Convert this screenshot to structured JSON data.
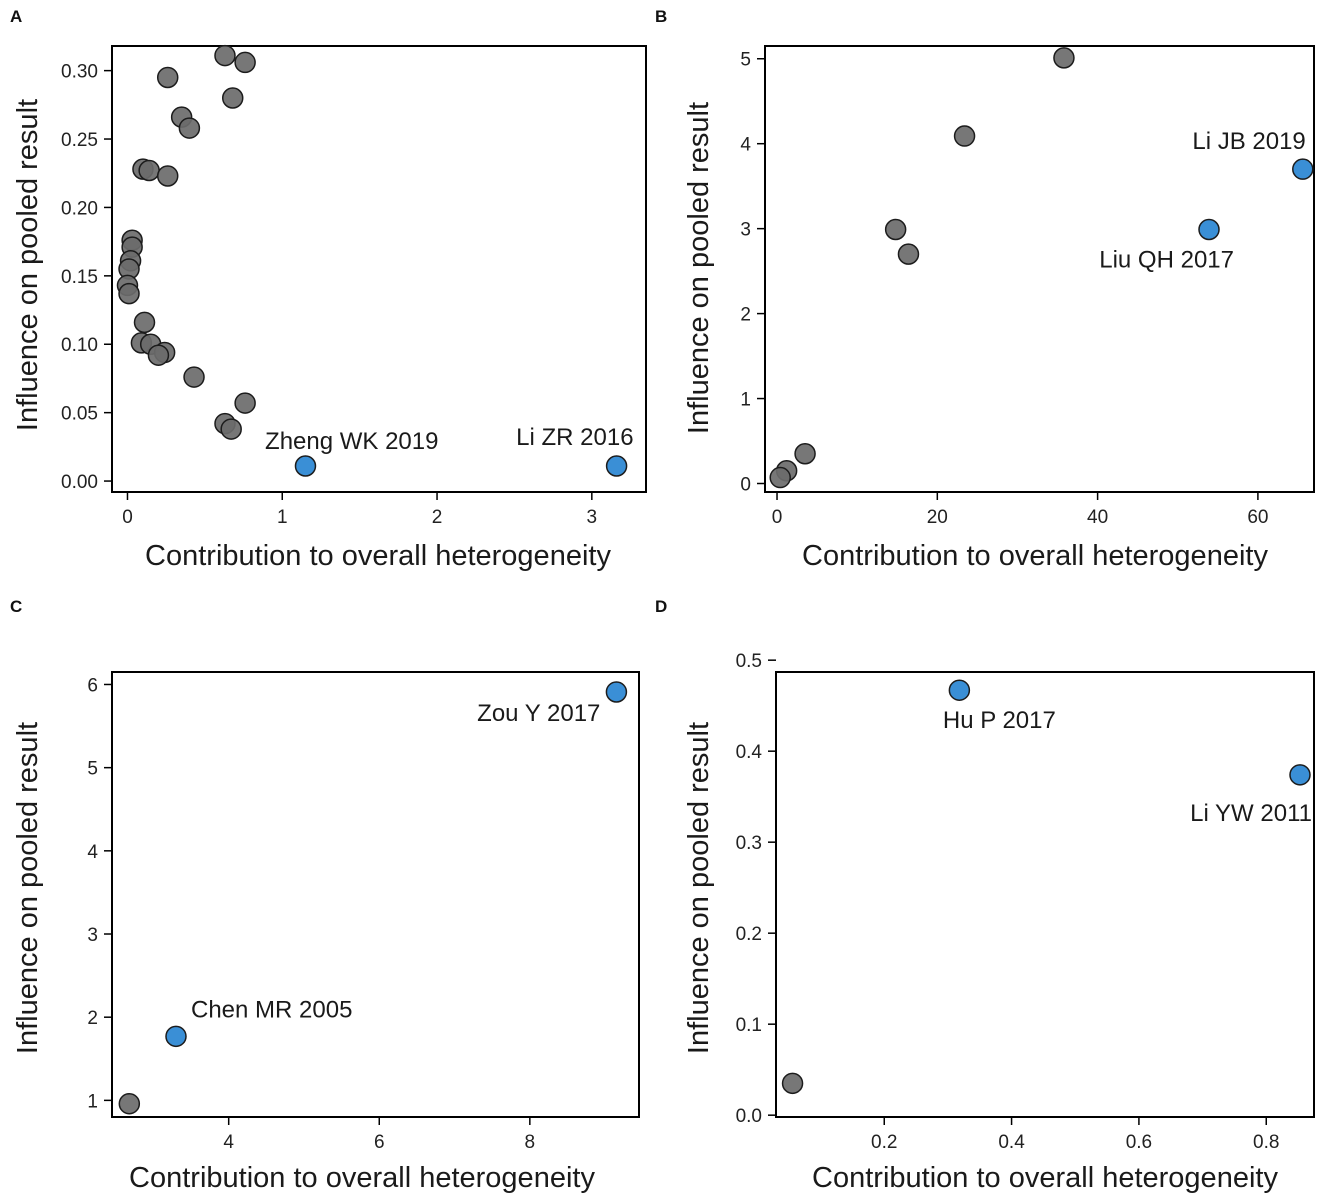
{
  "colors": {
    "normal": "#6b6b6b",
    "highlight": "#3a8fd6"
  },
  "chart_data": [
    {
      "panel": "A",
      "type": "scatter",
      "xlabel": "Contribution to overall heterogeneity",
      "ylabel": "Influence on pooled result",
      "xlim": [
        -0.1,
        3.35
      ],
      "ylim": [
        -0.008,
        0.318
      ],
      "xticks": [
        0,
        1,
        2,
        3
      ],
      "yticks": [
        0.0,
        0.05,
        0.1,
        0.15,
        0.2,
        0.25,
        0.3
      ],
      "ytick_labels": [
        "0.00",
        "0.05",
        "0.10",
        "0.15",
        "0.20",
        "0.25",
        "0.30"
      ],
      "points": [
        {
          "x": 0.63,
          "y": 0.311
        },
        {
          "x": 0.76,
          "y": 0.306
        },
        {
          "x": 0.26,
          "y": 0.295
        },
        {
          "x": 0.68,
          "y": 0.28
        },
        {
          "x": 0.35,
          "y": 0.266
        },
        {
          "x": 0.4,
          "y": 0.258
        },
        {
          "x": 0.1,
          "y": 0.228
        },
        {
          "x": 0.14,
          "y": 0.227
        },
        {
          "x": 0.26,
          "y": 0.223
        },
        {
          "x": 0.03,
          "y": 0.176
        },
        {
          "x": 0.03,
          "y": 0.171
        },
        {
          "x": 0.02,
          "y": 0.161
        },
        {
          "x": 0.01,
          "y": 0.155
        },
        {
          "x": 0.0,
          "y": 0.143
        },
        {
          "x": 0.01,
          "y": 0.137
        },
        {
          "x": 0.11,
          "y": 0.116
        },
        {
          "x": 0.09,
          "y": 0.101
        },
        {
          "x": 0.15,
          "y": 0.1
        },
        {
          "x": 0.24,
          "y": 0.094
        },
        {
          "x": 0.2,
          "y": 0.092
        },
        {
          "x": 0.43,
          "y": 0.076
        },
        {
          "x": 0.76,
          "y": 0.057
        },
        {
          "x": 0.63,
          "y": 0.042
        },
        {
          "x": 0.67,
          "y": 0.038
        }
      ],
      "highlighted": [
        {
          "x": 1.15,
          "y": 0.011,
          "label": "Zheng WK 2019",
          "anchor": "end",
          "dx": 133,
          "dy": -17
        },
        {
          "x": 3.16,
          "y": 0.011,
          "label": "Li ZR 2016",
          "anchor": "end",
          "dx": 17,
          "dy": -21
        }
      ]
    },
    {
      "panel": "B",
      "type": "scatter",
      "xlabel": "Contribution to overall heterogeneity",
      "ylabel": "Influence on pooled result",
      "xlim": [
        -1.5,
        67
      ],
      "ylim": [
        -0.1,
        5.15
      ],
      "xticks": [
        0,
        20,
        40,
        60
      ],
      "yticks": [
        0,
        1,
        2,
        3,
        4,
        5
      ],
      "ytick_labels": [
        "0",
        "1",
        "2",
        "3",
        "4",
        "5"
      ],
      "points": [
        {
          "x": 35.8,
          "y": 5.01
        },
        {
          "x": 23.4,
          "y": 4.09
        },
        {
          "x": 14.8,
          "y": 2.99
        },
        {
          "x": 16.4,
          "y": 2.7
        },
        {
          "x": 3.5,
          "y": 0.35
        },
        {
          "x": 1.2,
          "y": 0.15
        },
        {
          "x": 0.4,
          "y": 0.07
        }
      ],
      "highlighted": [
        {
          "x": 65.6,
          "y": 3.7,
          "label": "Li JB 2019",
          "anchor": "end",
          "dx": 3,
          "dy": -20
        },
        {
          "x": 53.9,
          "y": 2.99,
          "label": "Liu QH 2017",
          "anchor": "end",
          "dx": 25,
          "dy": 38
        }
      ]
    },
    {
      "panel": "C",
      "type": "scatter",
      "xlabel": "Contribution to overall heterogeneity",
      "ylabel": "Influence on pooled result",
      "xlim": [
        2.45,
        9.45
      ],
      "ylim": [
        0.8,
        6.15
      ],
      "xticks": [
        4,
        6,
        8
      ],
      "yticks": [
        1,
        2,
        3,
        4,
        5,
        6
      ],
      "ytick_labels": [
        "1",
        "2",
        "3",
        "4",
        "5",
        "6"
      ],
      "points": [
        {
          "x": 2.68,
          "y": 0.96
        }
      ],
      "highlighted": [
        {
          "x": 9.15,
          "y": 5.91,
          "label": "Zou Y 2017",
          "anchor": "end",
          "dx": -16,
          "dy": 29
        },
        {
          "x": 3.3,
          "y": 1.77,
          "label": "Chen MR 2005",
          "anchor": "start",
          "dx": 15,
          "dy": -19
        }
      ]
    },
    {
      "panel": "D",
      "type": "scatter",
      "xlabel": "Contribution to overall heterogeneity",
      "ylabel": "Influence on pooled result",
      "xlim": [
        0.03,
        0.875
      ],
      "ylim": [
        -0.002,
        0.487
      ],
      "xticks": [
        0.2,
        0.4,
        0.6,
        0.8
      ],
      "yticks": [
        0.0,
        0.1,
        0.2,
        0.3,
        0.4,
        0.5
      ],
      "ytick_labels": [
        "0.0",
        "0.1",
        "0.2",
        "0.3",
        "0.4",
        "0.5"
      ],
      "points": [
        {
          "x": 0.056,
          "y": 0.035
        }
      ],
      "highlighted": [
        {
          "x": 0.318,
          "y": 0.467,
          "label": "Hu P 2017",
          "anchor": "middle",
          "dx": 40,
          "dy": 38
        },
        {
          "x": 0.853,
          "y": 0.374,
          "label": "Li YW 2011",
          "anchor": "end",
          "dx": 12,
          "dy": 46
        }
      ]
    }
  ]
}
